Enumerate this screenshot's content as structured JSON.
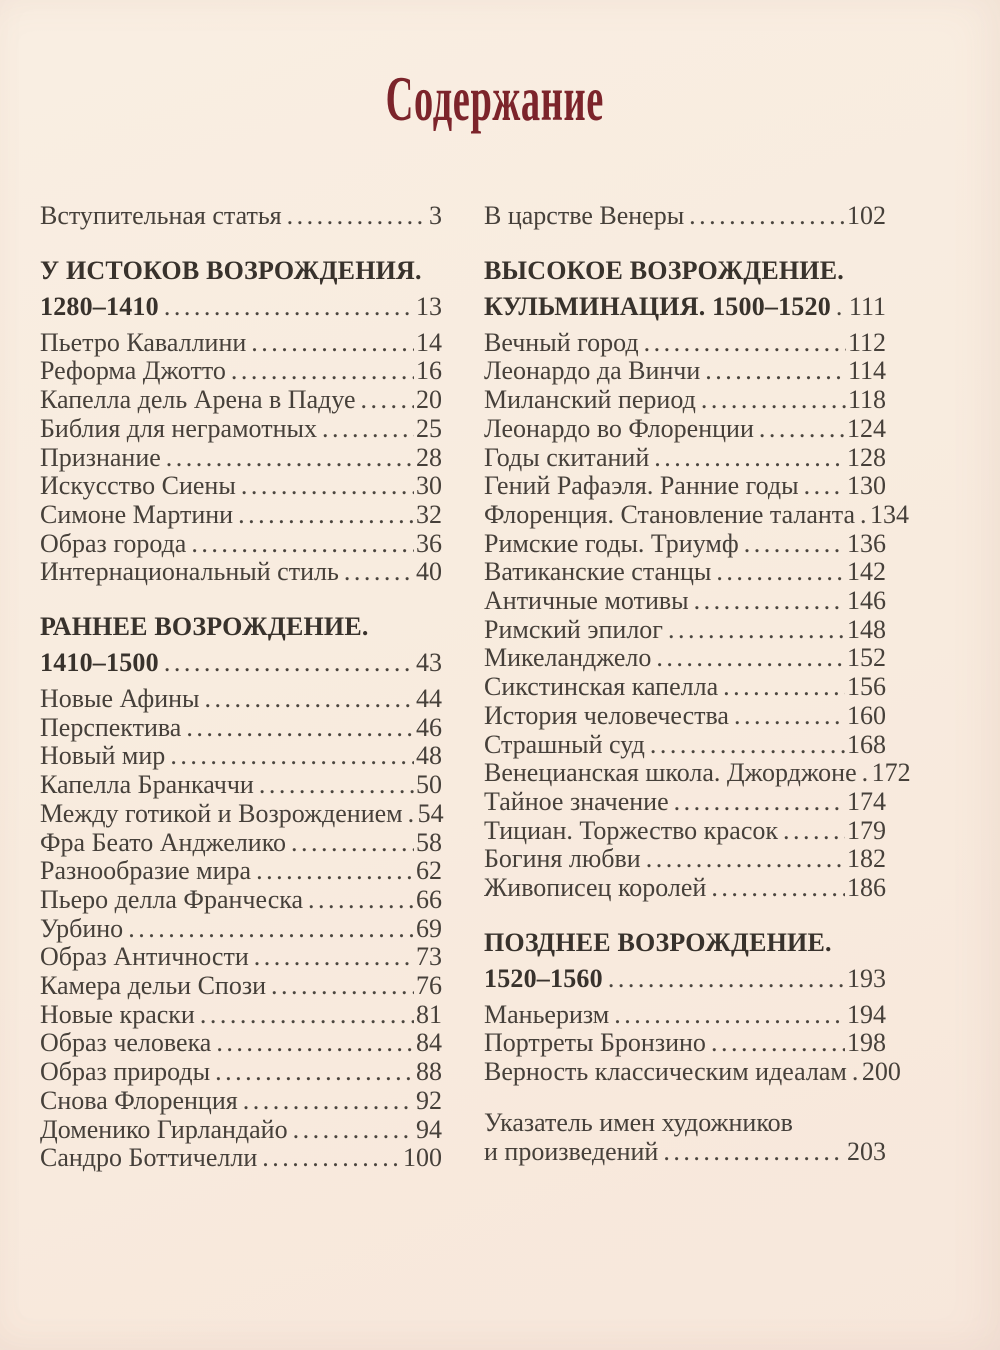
{
  "page": {
    "title": "Содержание",
    "colors": {
      "paper": "#f8ecdf",
      "title_red": "#7c242b",
      "body_text": "#46403a",
      "heading_text": "#38322c"
    },
    "columns": [
      {
        "entries": [
          {
            "bold": false,
            "space_before": false,
            "lines": [
              {
                "text": "Вступительная статья",
                "page": "3"
              }
            ]
          },
          {
            "bold": true,
            "space_before": true,
            "lines": [
              {
                "text": "У ИСТОКОВ ВОЗРОЖДЕНИЯ.",
                "page": ""
              },
              {
                "text": "1280–1410",
                "page": "13"
              }
            ]
          },
          {
            "bold": false,
            "space_before": false,
            "lines": [
              {
                "text": "Пьетро Каваллини",
                "page": "14"
              }
            ]
          },
          {
            "bold": false,
            "space_before": false,
            "lines": [
              {
                "text": "Реформа Джотто",
                "page": "16"
              }
            ]
          },
          {
            "bold": false,
            "space_before": false,
            "lines": [
              {
                "text": "Капелла дель Арена в Падуе",
                "page": "20"
              }
            ]
          },
          {
            "bold": false,
            "space_before": false,
            "lines": [
              {
                "text": "Библия для неграмотных",
                "page": "25"
              }
            ]
          },
          {
            "bold": false,
            "space_before": false,
            "lines": [
              {
                "text": "Признание",
                "page": "28"
              }
            ]
          },
          {
            "bold": false,
            "space_before": false,
            "lines": [
              {
                "text": "Искусство Сиены",
                "page": "30"
              }
            ]
          },
          {
            "bold": false,
            "space_before": false,
            "lines": [
              {
                "text": "Симоне Мартини",
                "page": "32"
              }
            ]
          },
          {
            "bold": false,
            "space_before": false,
            "lines": [
              {
                "text": "Образ города",
                "page": "36"
              }
            ]
          },
          {
            "bold": false,
            "space_before": false,
            "lines": [
              {
                "text": "Интернациональный стиль",
                "page": "40"
              }
            ]
          },
          {
            "bold": true,
            "space_before": true,
            "lines": [
              {
                "text": "РАННЕЕ ВОЗРОЖДЕНИЕ.",
                "page": ""
              },
              {
                "text": "1410–1500",
                "page": "43"
              }
            ]
          },
          {
            "bold": false,
            "space_before": false,
            "lines": [
              {
                "text": "Новые Афины",
                "page": "44"
              }
            ]
          },
          {
            "bold": false,
            "space_before": false,
            "lines": [
              {
                "text": "Перспектива",
                "page": "46"
              }
            ]
          },
          {
            "bold": false,
            "space_before": false,
            "lines": [
              {
                "text": "Новый мир",
                "page": "48"
              }
            ]
          },
          {
            "bold": false,
            "space_before": false,
            "lines": [
              {
                "text": "Капелла Бранкаччи",
                "page": "50"
              }
            ]
          },
          {
            "bold": false,
            "space_before": false,
            "lines": [
              {
                "text": "Между готикой и Возрождением",
                "page": "54"
              }
            ]
          },
          {
            "bold": false,
            "space_before": false,
            "lines": [
              {
                "text": "Фра Беато Анджелико",
                "page": "58"
              }
            ]
          },
          {
            "bold": false,
            "space_before": false,
            "lines": [
              {
                "text": "Разнообразие мира",
                "page": "62"
              }
            ]
          },
          {
            "bold": false,
            "space_before": false,
            "lines": [
              {
                "text": "Пьеро делла Франческа",
                "page": "66"
              }
            ]
          },
          {
            "bold": false,
            "space_before": false,
            "lines": [
              {
                "text": "Урбино",
                "page": "69"
              }
            ]
          },
          {
            "bold": false,
            "space_before": false,
            "lines": [
              {
                "text": "Образ Античности",
                "page": "73"
              }
            ]
          },
          {
            "bold": false,
            "space_before": false,
            "lines": [
              {
                "text": "Камера дельи Спози",
                "page": "76"
              }
            ]
          },
          {
            "bold": false,
            "space_before": false,
            "lines": [
              {
                "text": "Новые краски",
                "page": "81"
              }
            ]
          },
          {
            "bold": false,
            "space_before": false,
            "lines": [
              {
                "text": "Образ человека",
                "page": "84"
              }
            ]
          },
          {
            "bold": false,
            "space_before": false,
            "lines": [
              {
                "text": "Образ природы",
                "page": "88"
              }
            ]
          },
          {
            "bold": false,
            "space_before": false,
            "lines": [
              {
                "text": "Снова Флоренция",
                "page": "92"
              }
            ]
          },
          {
            "bold": false,
            "space_before": false,
            "lines": [
              {
                "text": "Доменико Гирландайо",
                "page": "94"
              }
            ]
          },
          {
            "bold": false,
            "space_before": false,
            "lines": [
              {
                "text": "Сандро Боттичелли",
                "page": "100"
              }
            ]
          }
        ]
      },
      {
        "entries": [
          {
            "bold": false,
            "space_before": false,
            "lines": [
              {
                "text": "В царстве Венеры",
                "page": "102"
              }
            ]
          },
          {
            "bold": true,
            "space_before": true,
            "lines": [
              {
                "text": "ВЫСОКОЕ ВОЗРОЖДЕНИЕ.",
                "page": ""
              },
              {
                "text": "КУЛЬМИНАЦИЯ. 1500–1520",
                "page": "111"
              }
            ]
          },
          {
            "bold": false,
            "space_before": false,
            "lines": [
              {
                "text": "Вечный город",
                "page": "112"
              }
            ]
          },
          {
            "bold": false,
            "space_before": false,
            "lines": [
              {
                "text": "Леонардо да Винчи",
                "page": "114"
              }
            ]
          },
          {
            "bold": false,
            "space_before": false,
            "lines": [
              {
                "text": "Миланский период",
                "page": "118"
              }
            ]
          },
          {
            "bold": false,
            "space_before": false,
            "lines": [
              {
                "text": "Леонардо во Флоренции",
                "page": "124"
              }
            ]
          },
          {
            "bold": false,
            "space_before": false,
            "lines": [
              {
                "text": "Годы скитаний",
                "page": "128"
              }
            ]
          },
          {
            "bold": false,
            "space_before": false,
            "lines": [
              {
                "text": "Гений Рафаэля. Ранние годы",
                "page": "130"
              }
            ]
          },
          {
            "bold": false,
            "space_before": false,
            "lines": [
              {
                "text": "Флоренция. Становление таланта",
                "page": "134"
              }
            ]
          },
          {
            "bold": false,
            "space_before": false,
            "lines": [
              {
                "text": "Римские годы. Триумф",
                "page": "136"
              }
            ]
          },
          {
            "bold": false,
            "space_before": false,
            "lines": [
              {
                "text": "Ватиканские станцы",
                "page": "142"
              }
            ]
          },
          {
            "bold": false,
            "space_before": false,
            "lines": [
              {
                "text": "Античные мотивы",
                "page": "146"
              }
            ]
          },
          {
            "bold": false,
            "space_before": false,
            "lines": [
              {
                "text": "Римский эпилог",
                "page": "148"
              }
            ]
          },
          {
            "bold": false,
            "space_before": false,
            "lines": [
              {
                "text": "Микеланджело",
                "page": "152"
              }
            ]
          },
          {
            "bold": false,
            "space_before": false,
            "lines": [
              {
                "text": "Сикстинская капелла",
                "page": "156"
              }
            ]
          },
          {
            "bold": false,
            "space_before": false,
            "lines": [
              {
                "text": "История человечества",
                "page": "160"
              }
            ]
          },
          {
            "bold": false,
            "space_before": false,
            "lines": [
              {
                "text": "Страшный суд",
                "page": "168"
              }
            ]
          },
          {
            "bold": false,
            "space_before": false,
            "lines": [
              {
                "text": "Венецианская школа. Джорджоне",
                "page": "172"
              }
            ]
          },
          {
            "bold": false,
            "space_before": false,
            "lines": [
              {
                "text": "Тайное значение",
                "page": "174"
              }
            ]
          },
          {
            "bold": false,
            "space_before": false,
            "lines": [
              {
                "text": "Тициан. Торжество красок",
                "page": "179"
              }
            ]
          },
          {
            "bold": false,
            "space_before": false,
            "lines": [
              {
                "text": "Богиня любви",
                "page": "182"
              }
            ]
          },
          {
            "bold": false,
            "space_before": false,
            "lines": [
              {
                "text": "Живописец королей",
                "page": "186"
              }
            ]
          },
          {
            "bold": true,
            "space_before": true,
            "lines": [
              {
                "text": "ПОЗДНЕЕ ВОЗРОЖДЕНИЕ.",
                "page": ""
              },
              {
                "text": "1520–1560",
                "page": "193"
              }
            ]
          },
          {
            "bold": false,
            "space_before": false,
            "lines": [
              {
                "text": "Маньеризм",
                "page": "194"
              }
            ]
          },
          {
            "bold": false,
            "space_before": false,
            "lines": [
              {
                "text": "Портреты Бронзино",
                "page": "198"
              }
            ]
          },
          {
            "bold": false,
            "space_before": false,
            "lines": [
              {
                "text": "Верность классическим идеалам",
                "page": "200"
              }
            ]
          },
          {
            "bold": false,
            "space_before": true,
            "lines": [
              {
                "text": "Указатель имен художников",
                "page": ""
              },
              {
                "text": "и произведений",
                "page": "203"
              }
            ]
          }
        ]
      }
    ]
  }
}
